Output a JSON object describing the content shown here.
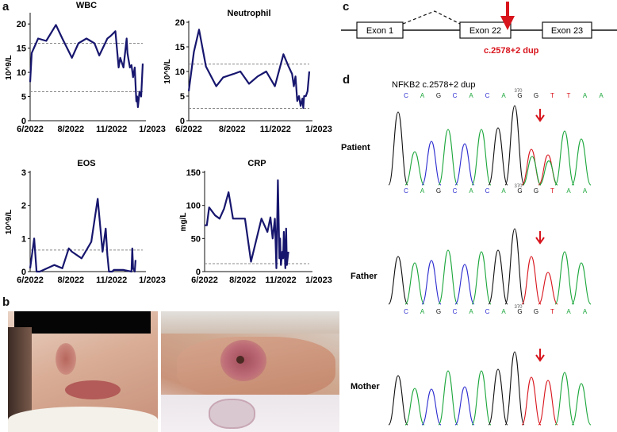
{
  "panels": {
    "a": "a",
    "b": "b",
    "c": "c",
    "d": "d"
  },
  "chart_data": [
    {
      "type": "line",
      "title": "WBC",
      "ylabel": "10^9/L",
      "yticks": [
        0,
        5,
        10,
        15,
        20
      ],
      "ylim": [
        0,
        22
      ],
      "xticks": [
        "6/2022",
        "8/2022",
        "11/2022",
        "1/2023"
      ],
      "reference_lines": [
        6,
        16
      ],
      "series": [
        {
          "x": [
            0,
            0.1,
            0.5,
            1,
            1.6,
            2,
            2.6,
            3,
            3.5,
            4,
            4.3,
            4.8,
            5,
            5.3,
            5.5,
            5.6,
            5.8,
            5.9,
            6,
            6.05,
            6.1,
            6.2,
            6.3,
            6.4,
            6.5,
            6.6,
            6.65,
            6.7,
            6.8,
            6.9,
            7
          ],
          "y": [
            8,
            14,
            17,
            16.5,
            19.8,
            17,
            13,
            16,
            17,
            16,
            13.5,
            17,
            17.5,
            18.5,
            11,
            13,
            11,
            14,
            17,
            14,
            13,
            11,
            11.5,
            9,
            11,
            4,
            5,
            2.8,
            6,
            5,
            11.8
          ]
        }
      ]
    },
    {
      "type": "line",
      "title": "Neutrophil",
      "ylabel": "10^9/L",
      "yticks": [
        0,
        5,
        10,
        15,
        20
      ],
      "ylim": [
        0,
        20
      ],
      "xticks": [
        "6/2022",
        "8/2022",
        "11/2022",
        "1/2023"
      ],
      "reference_lines": [
        2.5,
        11.5
      ],
      "series": [
        {
          "x": [
            0,
            0.3,
            0.6,
            1,
            1.6,
            2,
            2.6,
            3,
            3.5,
            4,
            4.5,
            5,
            5.5,
            5.8,
            6,
            6.1,
            6.2,
            6.3,
            6.4,
            6.5,
            6.6,
            6.65,
            6.7,
            6.8,
            6.9,
            7
          ],
          "y": [
            6,
            14,
            18.5,
            11,
            7,
            8.8,
            9.5,
            10,
            7.5,
            9,
            10,
            7,
            13.5,
            11,
            9.5,
            7,
            9,
            4,
            5,
            3,
            4.5,
            2.6,
            5,
            5,
            6,
            10
          ]
        }
      ]
    },
    {
      "type": "line",
      "title": "EOS",
      "ylabel": "10^9/L",
      "yticks": [
        0,
        1,
        2,
        3
      ],
      "ylim": [
        0,
        3
      ],
      "xticks": [
        "6/2022",
        "8/2022",
        "11/2022",
        "1/2023"
      ],
      "reference_lines": [
        0.65
      ],
      "series": [
        {
          "x": [
            0,
            0.25,
            0.4,
            0.6,
            1.5,
            2,
            2.4,
            2.6,
            3.2,
            3.8,
            4.2,
            4.5,
            4.7,
            4.8,
            4.9,
            5,
            5.1,
            5.2,
            5.8,
            6.3,
            6.35,
            6.4,
            6.5,
            6.55
          ],
          "y": [
            0.1,
            1,
            0,
            0,
            0.2,
            0.1,
            0.7,
            0.6,
            0.4,
            0.9,
            2.2,
            0.6,
            1.3,
            0.5,
            0,
            0,
            0,
            0.05,
            0.05,
            0,
            0.7,
            0.1,
            0,
            0.35
          ]
        }
      ]
    },
    {
      "type": "line",
      "title": "CRP",
      "ylabel": "mg/L",
      "yticks": [
        0,
        50,
        100,
        150
      ],
      "ylim": [
        0,
        150
      ],
      "xticks": [
        "6/2022",
        "8/2022",
        "11/2022",
        "1/2023"
      ],
      "reference_lines": [
        12
      ],
      "series": [
        {
          "x": [
            0,
            0.15,
            0.3,
            0.7,
            1,
            1.3,
            1.6,
            1.9,
            2.3,
            2.7,
            3.1,
            3.8,
            4.2,
            4.4,
            4.55,
            4.7,
            4.8,
            4.9,
            5,
            5.05,
            5.1,
            5.2,
            5.25,
            5.3,
            5.4,
            5.45,
            5.5,
            5.6
          ],
          "y": [
            70,
            70,
            97,
            85,
            80,
            95,
            120,
            80,
            80,
            80,
            15,
            80,
            60,
            82,
            50,
            80,
            5,
            138,
            20,
            50,
            10,
            30,
            20,
            60,
            5,
            65,
            10,
            30
          ]
        }
      ]
    }
  ],
  "gene": {
    "exons": [
      "Exon 1",
      "Exon 22",
      "Exon 23"
    ],
    "mutation_label": "c.2578+2 dup",
    "colors": {
      "mutation": "#d8141c",
      "navy": "#17166e"
    }
  },
  "sequencing": {
    "title": "NFKB2 c.2578+2 dup",
    "top_bases": [
      "C",
      "A",
      "G",
      "C",
      "A",
      "C",
      "A",
      "G",
      "G",
      "T",
      "T",
      "A",
      "A"
    ],
    "top_position": "370",
    "patient_bases": [
      "C",
      "A",
      "G",
      "C",
      "A",
      "C",
      "A",
      "G",
      "G",
      "T",
      "A",
      "A"
    ],
    "patient_position": "370",
    "father_bases": [
      "C",
      "A",
      "G",
      "C",
      "A",
      "C",
      "A",
      "G",
      "G",
      "T",
      "A",
      "A"
    ],
    "father_position": "370",
    "rows": [
      "Patient",
      "Father",
      "Mother"
    ]
  }
}
